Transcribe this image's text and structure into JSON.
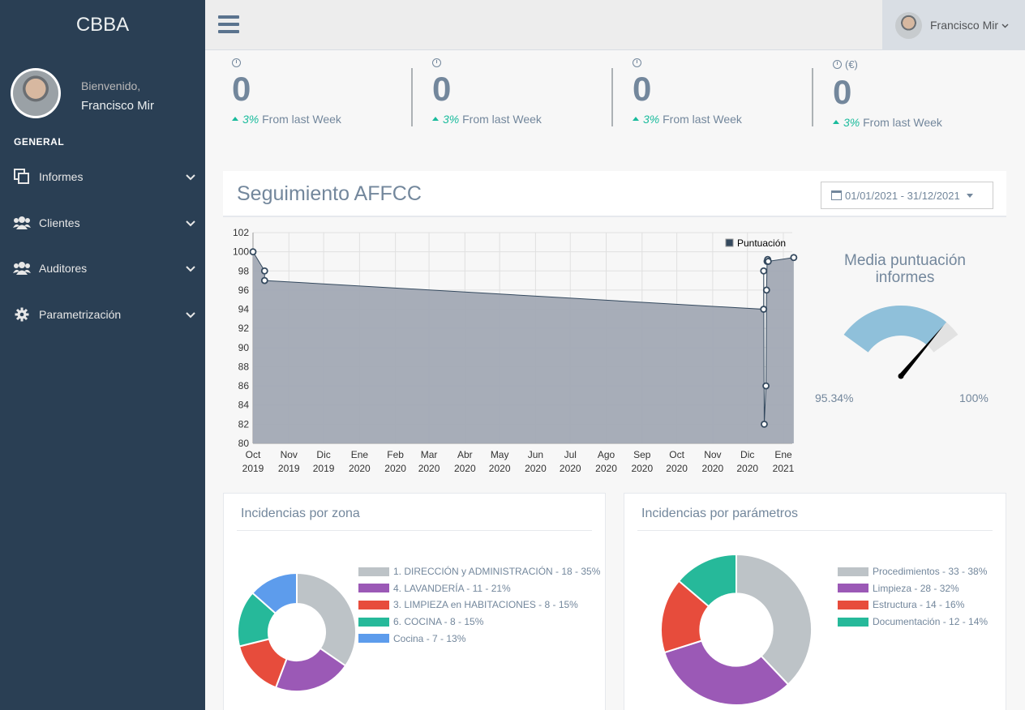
{
  "app": {
    "brand": "CBBA"
  },
  "profile": {
    "welcome": "Bienvenido,",
    "name": "Francisco Mir"
  },
  "sidebar": {
    "section": "GENERAL",
    "items": [
      {
        "label": "Informes",
        "icon": "clone-icon"
      },
      {
        "label": "Clientes",
        "icon": "users-icon"
      },
      {
        "label": "Auditores",
        "icon": "users-icon"
      },
      {
        "label": "Parametrización",
        "icon": "gear-icon"
      }
    ]
  },
  "topbar": {
    "user": "Francisco Mir"
  },
  "tiles": [
    {
      "head": "",
      "value": "0",
      "pct": "3%",
      "suffix": "From last Week"
    },
    {
      "head": "",
      "value": "0",
      "pct": "3%",
      "suffix": "From last Week"
    },
    {
      "head": "",
      "value": "0",
      "pct": "3%",
      "suffix": "From last Week"
    },
    {
      "head": "(€)",
      "value": "0",
      "pct": "3%",
      "suffix": "From last Week"
    }
  ],
  "panel": {
    "title": "Seguimiento AFFCC",
    "date_range": "01/01/2021 - 31/12/2021"
  },
  "gauge": {
    "title_line1": "Media puntuación",
    "title_line2": "informes",
    "min_label": "95.34%",
    "max_label": "100%",
    "value": 99.4,
    "min": 95.34,
    "max": 100,
    "color": "#8FC0DA"
  },
  "chart_data": [
    {
      "type": "area",
      "legend": [
        "Puntuación"
      ],
      "x_ticks": [
        [
          "Oct",
          "2019"
        ],
        [
          "Nov",
          "2019"
        ],
        [
          "Dic",
          "2019"
        ],
        [
          "Ene",
          "2020"
        ],
        [
          "Feb",
          "2020"
        ],
        [
          "Mar",
          "2020"
        ],
        [
          "Abr",
          "2020"
        ],
        [
          "May",
          "2020"
        ],
        [
          "Jun",
          "2020"
        ],
        [
          "Jul",
          "2020"
        ],
        [
          "Ago",
          "2020"
        ],
        [
          "Sep",
          "2020"
        ],
        [
          "Oct",
          "2020"
        ],
        [
          "Nov",
          "2020"
        ],
        [
          "Dic",
          "2020"
        ],
        [
          "Ene",
          "2021"
        ]
      ],
      "y_ticks": [
        80,
        82,
        84,
        86,
        88,
        90,
        92,
        94,
        96,
        98,
        100,
        102
      ],
      "ylim": [
        80,
        102
      ],
      "series": [
        {
          "name": "Puntuación",
          "x": [
            "2019-10-01",
            "2019-10-11",
            "2019-10-11",
            "2020-12-15",
            "2020-12-16",
            "2020-12-16",
            "2020-12-17",
            "2020-12-17",
            "2020-12-17",
            "2020-12-17",
            "2020-12-17",
            "2021-01-10"
          ],
          "y": [
            100,
            98,
            97,
            94,
            98,
            82,
            86,
            96,
            99,
            99.2,
            99,
            99.4
          ]
        }
      ],
      "grid": true,
      "legend_position": "top-right",
      "fill_color": "#A2A9B4",
      "line_color": "#34495E"
    },
    {
      "type": "pie",
      "title": "Incidencias por zona",
      "labels": [
        "1. DIRECCIÓN y ADMINISTRACIÓN - 18 - 35%",
        "4. LAVANDERÍA - 11 - 21%",
        "3. LIMPIEZA en HABITACIONES - 8 - 15%",
        "6. COCINA - 8 - 15%",
        "Cocina - 7 - 13%"
      ],
      "values": [
        18,
        11,
        8,
        8,
        7
      ],
      "colors": [
        "#BDC3C7",
        "#9B59B6",
        "#E74C3C",
        "#26B99A",
        "#5D9CEC"
      ]
    },
    {
      "type": "pie",
      "title": "Incidencias por parámetros",
      "labels": [
        "Procedimientos - 33 - 38%",
        "Limpieza - 28 - 32%",
        "Estructura - 14 - 16%",
        "Documentación - 12 - 14%"
      ],
      "values": [
        33,
        28,
        14,
        12
      ],
      "colors": [
        "#BDC3C7",
        "#9B59B6",
        "#E74C3C",
        "#26B99A"
      ]
    }
  ]
}
